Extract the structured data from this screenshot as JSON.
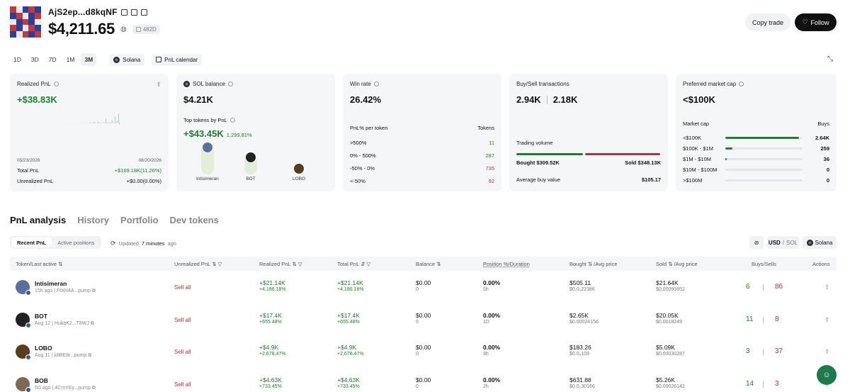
{
  "header": {
    "wallet": "AjS2ep...d8kqNF",
    "balance": "$4,211.65",
    "age": "482D",
    "copy_trade": "Copy trade",
    "follow": "Follow"
  },
  "periods": [
    "1D",
    "3D",
    "7D",
    "1M",
    "3M"
  ],
  "active_period": "3M",
  "chips": {
    "chain": "Solana",
    "calendar": "PnL calendar"
  },
  "cards": {
    "realized": {
      "title": "Realized PnL",
      "value": "+$38.83K",
      "date_start": "05/23/2026",
      "date_end": "08/20/2026",
      "total_label": "Total PnL",
      "total_value": "+$169.18K(11.26%)",
      "unrealized_label": "Unrealized PnL",
      "unrealized_value": "+$0.00(0.00%)"
    },
    "sol": {
      "title": "SOL balance",
      "value": "$4.21K",
      "top_title": "Top tokens by PnL",
      "top_value": "+$43.45K",
      "top_pct": "1,299.81%",
      "tokens": [
        {
          "name": "Intisimeran",
          "level": 1.0,
          "color": "#5a6f9c"
        },
        {
          "name": "BOT",
          "level": 0.55,
          "color": "#222222"
        },
        {
          "name": "LOBO",
          "level": 0.0,
          "color": "#5a3b1a"
        }
      ]
    },
    "win": {
      "title": "Win rate",
      "value": "26.42%",
      "per_token": "PnL% per token",
      "tokens_label": "Tokens",
      "rows": [
        {
          "label": ">500%",
          "value": "11",
          "tone": "green"
        },
        {
          "label": "0% - 500%",
          "value": "287",
          "tone": "green"
        },
        {
          "label": "-50% - 0%",
          "value": "735",
          "tone": "red"
        },
        {
          "label": "<-50%",
          "value": "92",
          "tone": "red"
        }
      ]
    },
    "trades": {
      "title": "Buy/Sell transactions",
      "buys": "2.94K",
      "sells": "2.18K",
      "volume_label": "Trading volume",
      "bought": "Bought $309.52K",
      "sold": "Sold $348.13K",
      "avg_label": "Average buy value",
      "avg_value": "$105.17"
    },
    "mcap": {
      "title": "Preferred market cap",
      "value": "<$100K",
      "col_left": "Market cap",
      "col_right": "Buys",
      "rows": [
        {
          "label": "<$100K",
          "value": "2.64K",
          "fill": 0.95
        },
        {
          "label": "$100K - $1M",
          "value": "259",
          "fill": 0.09
        },
        {
          "label": "$1M - $10M",
          "value": "36",
          "fill": 0.015
        },
        {
          "label": "$10M - $100M",
          "value": "0",
          "fill": 0
        },
        {
          "label": ">$100M",
          "value": "0",
          "fill": 0
        }
      ]
    }
  },
  "main_tabs": [
    "PnL analysis",
    "History",
    "Portfolio",
    "Dev tokens"
  ],
  "sub_tabs": [
    "Recent PnL",
    "Active positions"
  ],
  "updated": {
    "prefix": "Updated",
    "when": "7 minutes",
    "suffix": "ago"
  },
  "currency": {
    "usd": "USD",
    "sep": "/",
    "sol": "SOL"
  },
  "chain_filter": "Solana",
  "columns": {
    "token": "Token/Last active",
    "unrealized": "Unrealized PnL",
    "realized": "Realized PnL",
    "total": "Total PnL",
    "balance": "Balance",
    "position": "Position %/Duration",
    "bought": "Bought",
    "bought_avg": "/Avg price",
    "sold": "Sold",
    "sold_avg": "/Avg price",
    "buys_sells": "Buys/Sells",
    "actions": "Actions"
  },
  "rows": [
    {
      "name": "Intisimeran",
      "sub": "15h ago | FtXH4A...pump",
      "sell": "Sell all",
      "realized": "+$21.14K",
      "realized_pct": "+4,186.18%",
      "total": "+$21.14K",
      "total_pct": "+4,186.18%",
      "balance": "$0.00",
      "balance_sub": "0",
      "position": "0.00%",
      "duration": "5h",
      "bought": "$505.11",
      "bought_avg": "$0.0₂22386",
      "sold": "$21.64K",
      "sold_avg": "$0.00095952",
      "buys": "6",
      "sells": "86",
      "color": "#5a6f9c"
    },
    {
      "name": "BOT",
      "sub": "Aug 12 | HukaK2...T8WJ",
      "sell": "Sell all",
      "realized": "+$17.4K",
      "realized_pct": "+655.48%",
      "total": "+$17.4K",
      "total_pct": "+655.48%",
      "balance": "$0.00",
      "balance_sub": "0",
      "position": "0.00%",
      "duration": "1D",
      "bought": "$2.65K",
      "bought_avg": "$0.00024156",
      "sold": "$20.05K",
      "sold_avg": "$0.0018249",
      "buys": "11",
      "sells": "8",
      "color": "#222222"
    },
    {
      "name": "LOBO",
      "sub": "Aug 11 | k8BE8r...pump",
      "sell": "Sell all",
      "realized": "+$4.9K",
      "realized_pct": "+2,678.47%",
      "total": "+$4.9K",
      "total_pct": "+2,678.47%",
      "balance": "$0.00",
      "balance_sub": "0",
      "position": "0.00%",
      "duration": "3h",
      "bought": "$183.26",
      "bought_avg": "$0.0₄109",
      "sold": "$5.09K",
      "sold_avg": "$0.00030287",
      "buys": "3",
      "sells": "37",
      "color": "#5a3b1a"
    },
    {
      "name": "BOB",
      "sub": "6D ago | 4CmYEy...pump",
      "sell": "Sell all",
      "realized": "+$4.63K",
      "realized_pct": "+733.45%",
      "total": "+$4.63K",
      "total_pct": "+733.45%",
      "balance": "$0.00",
      "balance_sub": "0",
      "position": "0.00%",
      "duration": "2h",
      "bought": "$631.88",
      "bought_avg": "$0.0₂30166",
      "sold": "$5.26K",
      "sold_avg": "$0.00026142",
      "buys": "14",
      "sells": "3",
      "color": "#7c6a55"
    }
  ],
  "colors": {
    "green": "#1e7d32",
    "red": "#b0303d",
    "card": "#f5f6f7"
  }
}
